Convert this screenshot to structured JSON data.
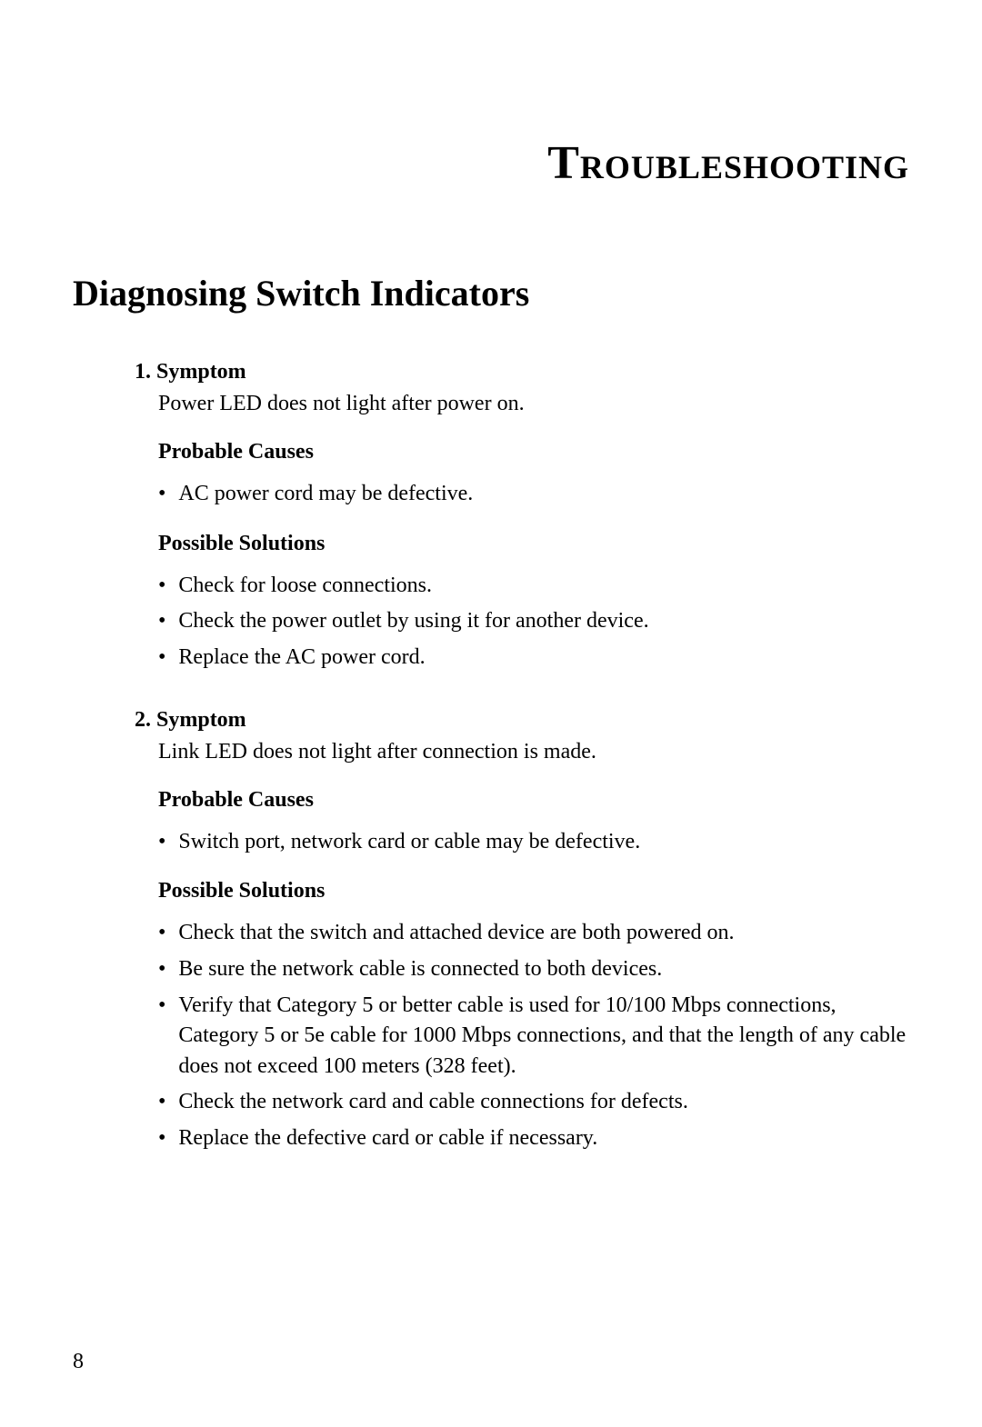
{
  "chapterTitle": "Troubleshooting",
  "sectionTitle": "Diagnosing Switch Indicators",
  "pageNumber": "8",
  "items": [
    {
      "number": "1.",
      "title": "Symptom",
      "description": "Power LED does not light after power on.",
      "probableCausesTitle": "Probable Causes",
      "probableCauses": [
        "AC power cord may be defective."
      ],
      "possibleSolutionsTitle": "Possible Solutions",
      "possibleSolutions": [
        "Check for loose connections.",
        "Check the power outlet by using it for another device.",
        "Replace the AC power cord."
      ]
    },
    {
      "number": "2.",
      "title": "Symptom",
      "description": "Link LED does not light after connection is made.",
      "probableCausesTitle": "Probable Causes",
      "probableCauses": [
        "Switch port, network card or cable may be defective."
      ],
      "possibleSolutionsTitle": "Possible Solutions",
      "possibleSolutions": [
        "Check that the switch and attached device are both powered on.",
        "Be sure the network cable is connected to both devices.",
        "Verify that Category 5 or better cable is used for 10/100 Mbps connections, Category 5 or 5e cable for 1000 Mbps connections, and that the length of any cable does not exceed 100 meters (328 feet).",
        "Check the network card and cable connections for defects.",
        "Replace the defective card or cable if necessary."
      ]
    }
  ]
}
